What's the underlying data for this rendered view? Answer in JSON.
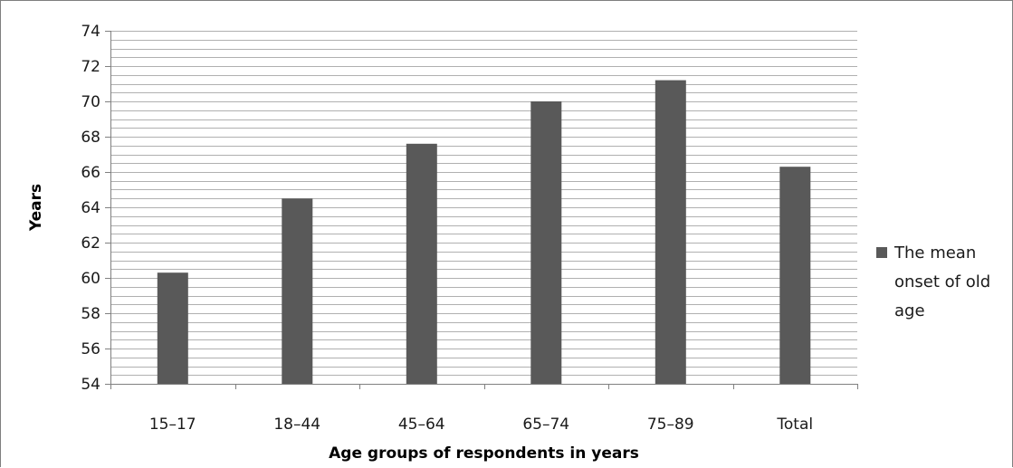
{
  "chart_data": {
    "type": "bar",
    "categories": [
      "15–17",
      "18–44",
      "45–64",
      "65–74",
      "75–89",
      "Total"
    ],
    "series": [
      {
        "name": "The mean onset of old age",
        "values": [
          60.3,
          64.5,
          67.6,
          70.0,
          71.2,
          66.3
        ],
        "color": "#595959"
      }
    ],
    "legend_lines": [
      "The mean",
      "onset of old",
      "age"
    ],
    "xlabel": "Age groups of respondents in years",
    "ylabel": "Years",
    "ylim": [
      54,
      74
    ],
    "yticks": [
      54,
      56,
      58,
      60,
      62,
      64,
      66,
      68,
      70,
      72,
      74
    ],
    "minor_gridline_step": 0.5,
    "grid": true,
    "legend_position": "right"
  }
}
